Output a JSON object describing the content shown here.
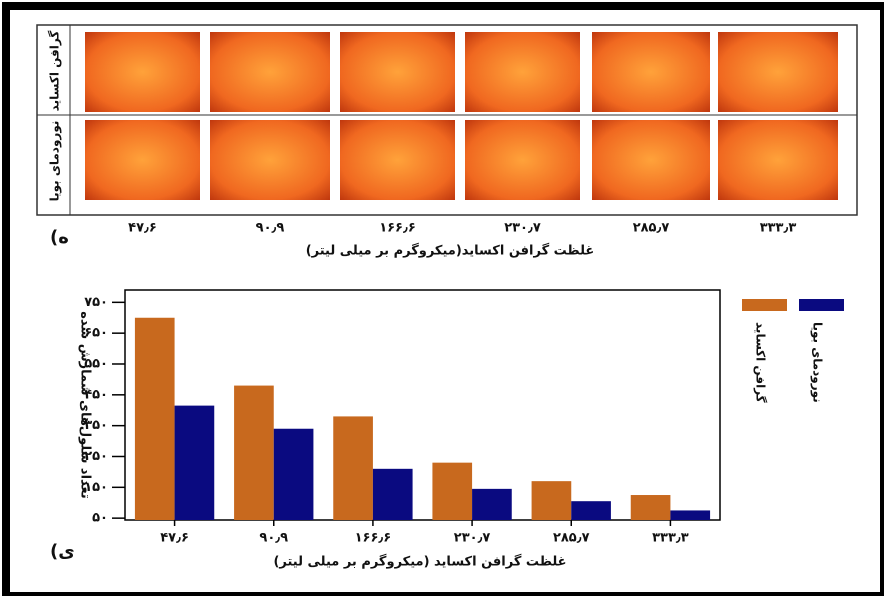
{
  "image_panel": {
    "label": "(ه",
    "row_labels": [
      "گرافن اکساید",
      "نورودمای بویا"
    ],
    "column_labels": [
      "۴۷٫۶",
      "۹۰٫۹",
      "۱۶۶٫۶",
      "۲۳۰٫۷",
      "۲۸۵٫۷",
      "۳۳۳٫۳"
    ],
    "x_label": "غلظت گرافن اکساید(میکروگرم بر میلی  لیتر)"
  },
  "chart_data": {
    "type": "bar",
    "panel_label": "(ی",
    "x_label": "غلظت گرافن اکساید (میکروگرم بر میلی لیتر)",
    "y_label": "تعداد سلول‌های شمارش شده",
    "categories": [
      "۴۷٫۶",
      "۹۰٫۹",
      "۱۶۶٫۶",
      "۲۳۰٫۷",
      "۲۸۵٫۷",
      "۳۳۳٫۳"
    ],
    "series": [
      {
        "name": "گرافن اکساید",
        "color": "#c8691e",
        "values": [
          700,
          480,
          380,
          230,
          170,
          125
        ]
      },
      {
        "name": "نورودمای بویا",
        "color": "#0a0a80",
        "values": [
          415,
          340,
          210,
          145,
          105,
          75
        ]
      }
    ],
    "ylim": [
      44,
      790
    ],
    "yticks": [
      {
        "value": 50,
        "label": "۵۰"
      },
      {
        "value": 150,
        "label": "۱۵۰"
      },
      {
        "value": 250,
        "label": "۲۵۰"
      },
      {
        "value": 350,
        "label": "۳۵۰"
      },
      {
        "value": 450,
        "label": "۴۵۰"
      },
      {
        "value": 550,
        "label": "۵۵۰"
      },
      {
        "value": 650,
        "label": "۶۵۰"
      },
      {
        "value": 750,
        "label": "۷۵۰"
      }
    ],
    "legend": "right"
  }
}
